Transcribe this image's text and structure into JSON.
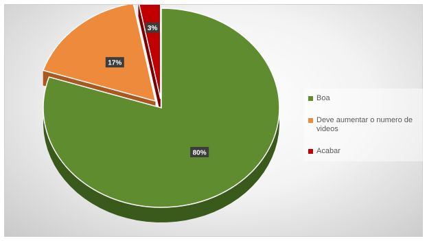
{
  "chart_data": {
    "type": "pie",
    "style": "3d",
    "legend_position": "right",
    "series": [
      {
        "name": "Boa",
        "value": 80,
        "label": "80%",
        "color": "#5f8c2f",
        "side_color": "#3a5a1c"
      },
      {
        "name": "Deve aumentar o numero de videos",
        "value": 17,
        "label": "17%",
        "color": "#ee8a3b",
        "side_color": "#a85820"
      },
      {
        "name": "Acabar",
        "value": 3,
        "label": "3%",
        "color": "#c00000",
        "side_color": "#7a0000"
      }
    ]
  }
}
